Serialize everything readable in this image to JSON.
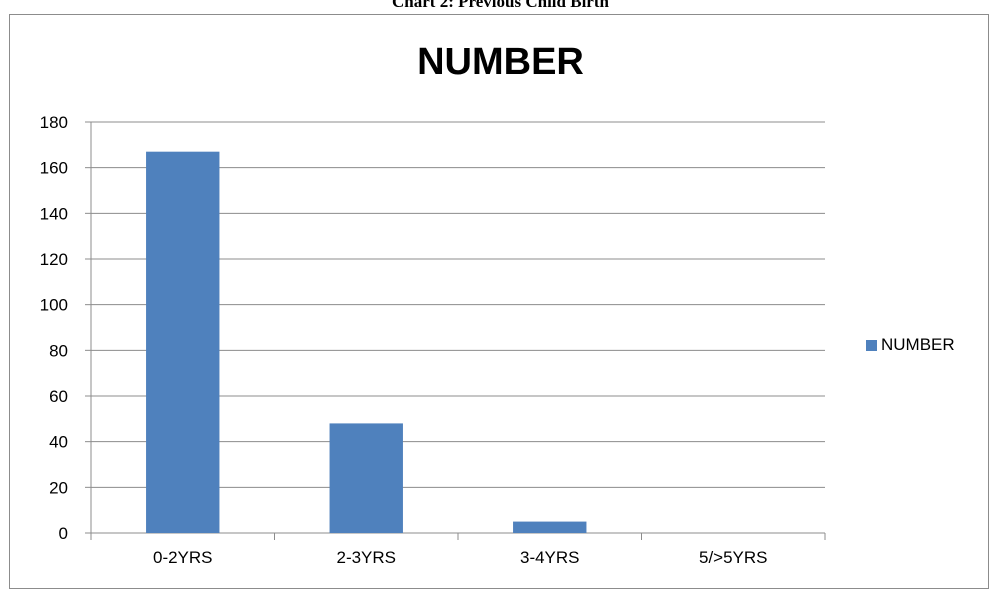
{
  "caption": "Chart 2: Previous Child Birth",
  "legend": {
    "swatch_color": "#4f81bd"
  },
  "chart_data": {
    "type": "bar",
    "title": "NUMBER",
    "categories": [
      "0-2YRS",
      "2-3YRS",
      "3-4YRS",
      "5/>5YRS"
    ],
    "series": [
      {
        "name": "NUMBER",
        "values": [
          167,
          48,
          5,
          0
        ],
        "color": "#4f81bd"
      }
    ],
    "ylim": [
      0,
      180
    ],
    "yticks": [
      "0",
      "20",
      "40",
      "60",
      "80",
      "100",
      "120",
      "140",
      "160",
      "180"
    ],
    "grid": true,
    "legend_position": "right"
  }
}
